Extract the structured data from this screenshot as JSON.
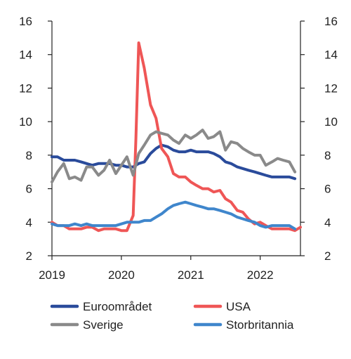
{
  "chart_data": {
    "type": "line",
    "title": "",
    "xlabel": "",
    "ylabel": "",
    "ylim": [
      2,
      16
    ],
    "y_ticks": [
      2,
      4,
      6,
      8,
      10,
      12,
      14,
      16
    ],
    "y_tick_labels": [
      "2",
      "4",
      "6",
      "8",
      "10",
      "12",
      "14",
      "16"
    ],
    "x_ticks": [
      2019,
      2020,
      2021,
      2022
    ],
    "x_tick_labels": [
      "2019",
      "2020",
      "2021",
      "2022"
    ],
    "xlim": [
      2019.0,
      2022.58
    ],
    "grid": false,
    "legend_position": "bottom",
    "series": [
      {
        "name": "Euroområdet",
        "color": "#2a4b9b",
        "x": [
          2019.0,
          2019.08,
          2019.17,
          2019.25,
          2019.33,
          2019.42,
          2019.5,
          2019.58,
          2019.67,
          2019.75,
          2019.83,
          2019.92,
          2020.0,
          2020.08,
          2020.17,
          2020.25,
          2020.33,
          2020.42,
          2020.5,
          2020.58,
          2020.67,
          2020.75,
          2020.83,
          2020.92,
          2021.0,
          2021.08,
          2021.17,
          2021.25,
          2021.33,
          2021.42,
          2021.5,
          2021.58,
          2021.67,
          2021.75,
          2021.83,
          2021.92,
          2022.0,
          2022.08,
          2022.17,
          2022.25,
          2022.33,
          2022.42,
          2022.5
        ],
        "values": [
          7.9,
          7.9,
          7.7,
          7.7,
          7.7,
          7.6,
          7.5,
          7.4,
          7.5,
          7.5,
          7.5,
          7.4,
          7.4,
          7.3,
          7.3,
          7.5,
          7.6,
          8.1,
          8.4,
          8.6,
          8.5,
          8.3,
          8.2,
          8.2,
          8.3,
          8.2,
          8.2,
          8.2,
          8.1,
          7.9,
          7.6,
          7.5,
          7.3,
          7.2,
          7.1,
          7.0,
          6.9,
          6.8,
          6.7,
          6.7,
          6.7,
          6.7,
          6.6
        ]
      },
      {
        "name": "USA",
        "color": "#ef5656",
        "x": [
          2019.0,
          2019.08,
          2019.17,
          2019.25,
          2019.33,
          2019.42,
          2019.5,
          2019.58,
          2019.67,
          2019.75,
          2019.83,
          2019.92,
          2020.0,
          2020.08,
          2020.17,
          2020.21,
          2020.25,
          2020.33,
          2020.42,
          2020.5,
          2020.58,
          2020.67,
          2020.75,
          2020.83,
          2020.92,
          2021.0,
          2021.08,
          2021.17,
          2021.25,
          2021.33,
          2021.42,
          2021.5,
          2021.58,
          2021.67,
          2021.75,
          2021.83,
          2021.92,
          2022.0,
          2022.08,
          2022.17,
          2022.25,
          2022.33,
          2022.42,
          2022.5,
          2022.58
        ],
        "values": [
          4.0,
          3.8,
          3.8,
          3.6,
          3.6,
          3.6,
          3.7,
          3.7,
          3.5,
          3.6,
          3.6,
          3.6,
          3.5,
          3.5,
          4.4,
          9.0,
          14.7,
          13.2,
          11.0,
          10.2,
          8.4,
          7.9,
          6.9,
          6.7,
          6.7,
          6.4,
          6.2,
          6.0,
          6.0,
          5.8,
          5.9,
          5.4,
          5.2,
          4.7,
          4.6,
          4.2,
          3.9,
          4.0,
          3.8,
          3.6,
          3.6,
          3.6,
          3.6,
          3.5,
          3.7
        ]
      },
      {
        "name": "Sverige",
        "color": "#8a8a8a",
        "x": [
          2019.0,
          2019.08,
          2019.17,
          2019.25,
          2019.33,
          2019.42,
          2019.5,
          2019.58,
          2019.67,
          2019.75,
          2019.83,
          2019.92,
          2020.0,
          2020.08,
          2020.17,
          2020.25,
          2020.33,
          2020.42,
          2020.5,
          2020.58,
          2020.67,
          2020.75,
          2020.83,
          2020.92,
          2021.0,
          2021.08,
          2021.17,
          2021.25,
          2021.33,
          2021.42,
          2021.5,
          2021.58,
          2021.67,
          2021.75,
          2021.83,
          2021.92,
          2022.0,
          2022.08,
          2022.17,
          2022.25,
          2022.33,
          2022.42,
          2022.5
        ],
        "values": [
          6.4,
          7.0,
          7.5,
          6.6,
          6.7,
          6.5,
          7.3,
          7.3,
          6.8,
          7.1,
          7.7,
          6.9,
          7.4,
          7.9,
          6.8,
          8.1,
          8.6,
          9.2,
          9.4,
          9.3,
          9.2,
          8.9,
          8.7,
          9.2,
          9.0,
          9.2,
          9.5,
          9.0,
          9.1,
          9.4,
          8.3,
          8.8,
          8.7,
          8.4,
          8.2,
          8.0,
          8.0,
          7.4,
          7.6,
          7.8,
          7.7,
          7.6,
          7.0
        ]
      },
      {
        "name": "Storbritannia",
        "color": "#3f86cc",
        "x": [
          2019.0,
          2019.08,
          2019.17,
          2019.25,
          2019.33,
          2019.42,
          2019.5,
          2019.58,
          2019.67,
          2019.75,
          2019.83,
          2019.92,
          2020.0,
          2020.08,
          2020.17,
          2020.25,
          2020.33,
          2020.42,
          2020.5,
          2020.58,
          2020.67,
          2020.75,
          2020.83,
          2020.92,
          2021.0,
          2021.08,
          2021.17,
          2021.25,
          2021.33,
          2021.42,
          2021.5,
          2021.58,
          2021.67,
          2021.75,
          2021.83,
          2021.92,
          2022.0,
          2022.08,
          2022.17,
          2022.25,
          2022.33,
          2022.42,
          2022.5
        ],
        "values": [
          3.9,
          3.8,
          3.8,
          3.8,
          3.9,
          3.8,
          3.9,
          3.8,
          3.8,
          3.8,
          3.8,
          3.8,
          3.9,
          4.0,
          4.0,
          4.0,
          4.1,
          4.1,
          4.3,
          4.5,
          4.8,
          5.0,
          5.1,
          5.2,
          5.1,
          5.0,
          4.9,
          4.8,
          4.8,
          4.7,
          4.6,
          4.5,
          4.3,
          4.2,
          4.1,
          4.0,
          3.8,
          3.7,
          3.8,
          3.8,
          3.8,
          3.8,
          3.6
        ]
      }
    ],
    "legend_order": [
      0,
      1,
      2,
      3
    ]
  }
}
